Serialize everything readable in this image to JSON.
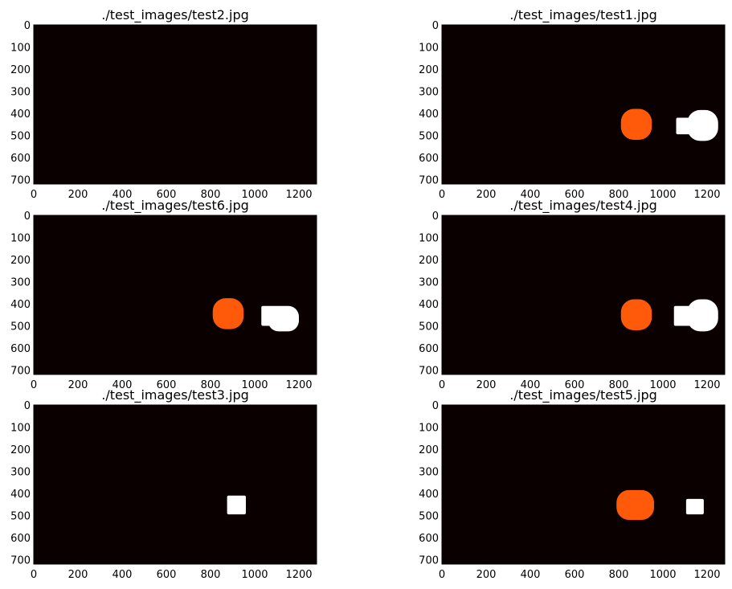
{
  "figure": {
    "background": "#ffffff"
  },
  "chart_data": [
    {
      "type": "heatmap",
      "title": "./test_images/test2.jpg",
      "xlim": [
        0,
        1280
      ],
      "ylim": [
        720,
        0
      ],
      "xticks": [
        "0",
        "200",
        "400",
        "600",
        "800",
        "1000",
        "1200"
      ],
      "yticks": [
        "0",
        "100",
        "200",
        "300",
        "400",
        "500",
        "600",
        "700"
      ],
      "background_color": "#0b0000",
      "blobs": []
    },
    {
      "type": "heatmap",
      "title": "./test_images/test1.jpg",
      "xlim": [
        0,
        1280
      ],
      "ylim": [
        720,
        0
      ],
      "xticks": [
        "0",
        "200",
        "400",
        "600",
        "800",
        "1000",
        "1200"
      ],
      "yticks": [
        "0",
        "100",
        "200",
        "300",
        "400",
        "500",
        "600",
        "700"
      ],
      "background_color": "#0b0000",
      "blobs": [
        {
          "shape": "round",
          "color": "#ff5a0a",
          "x": [
            810,
            950
          ],
          "y": [
            380,
            520
          ]
        },
        {
          "shape": "rect",
          "color": "#ffffff",
          "x": [
            1060,
            1130
          ],
          "y": [
            420,
            495
          ]
        },
        {
          "shape": "round",
          "color": "#ffffff",
          "x": [
            1110,
            1250
          ],
          "y": [
            385,
            525
          ]
        }
      ]
    },
    {
      "type": "heatmap",
      "title": "./test_images/test6.jpg",
      "xlim": [
        0,
        1280
      ],
      "ylim": [
        720,
        0
      ],
      "xticks": [
        "0",
        "200",
        "400",
        "600",
        "800",
        "1000",
        "1200"
      ],
      "yticks": [
        "0",
        "100",
        "200",
        "300",
        "400",
        "500",
        "600",
        "700"
      ],
      "background_color": "#0b0000",
      "blobs": [
        {
          "shape": "round",
          "color": "#ff5a0a",
          "x": [
            810,
            950
          ],
          "y": [
            375,
            515
          ]
        },
        {
          "shape": "rect",
          "color": "#ffffff",
          "x": [
            1030,
            1110
          ],
          "y": [
            410,
            500
          ]
        },
        {
          "shape": "round",
          "color": "#ffffff",
          "x": [
            1060,
            1200
          ],
          "y": [
            410,
            525
          ]
        }
      ]
    },
    {
      "type": "heatmap",
      "title": "./test_images/test4.jpg",
      "xlim": [
        0,
        1280
      ],
      "ylim": [
        720,
        0
      ],
      "xticks": [
        "0",
        "200",
        "400",
        "600",
        "800",
        "1000",
        "1200"
      ],
      "yticks": [
        "0",
        "100",
        "200",
        "300",
        "400",
        "500",
        "600",
        "700"
      ],
      "background_color": "#0b0000",
      "blobs": [
        {
          "shape": "round",
          "color": "#ff5a0a",
          "x": [
            810,
            950
          ],
          "y": [
            380,
            520
          ]
        },
        {
          "shape": "rect",
          "color": "#ffffff",
          "x": [
            1050,
            1130
          ],
          "y": [
            410,
            500
          ]
        },
        {
          "shape": "round",
          "color": "#ffffff",
          "x": [
            1110,
            1250
          ],
          "y": [
            380,
            525
          ]
        }
      ]
    },
    {
      "type": "heatmap",
      "title": "./test_images/test3.jpg",
      "xlim": [
        0,
        1280
      ],
      "ylim": [
        720,
        0
      ],
      "xticks": [
        "0",
        "200",
        "400",
        "600",
        "800",
        "1000",
        "1200"
      ],
      "yticks": [
        "0",
        "100",
        "200",
        "300",
        "400",
        "500",
        "600",
        "700"
      ],
      "background_color": "#0b0000",
      "blobs": [
        {
          "shape": "rect",
          "color": "#ffffff",
          "x": [
            875,
            960
          ],
          "y": [
            410,
            495
          ]
        }
      ]
    },
    {
      "type": "heatmap",
      "title": "./test_images/test5.jpg",
      "xlim": [
        0,
        1280
      ],
      "ylim": [
        720,
        0
      ],
      "xticks": [
        "0",
        "200",
        "400",
        "600",
        "800",
        "1000",
        "1200"
      ],
      "yticks": [
        "0",
        "100",
        "200",
        "300",
        "400",
        "500",
        "600",
        "700"
      ],
      "background_color": "#0b0000",
      "blobs": [
        {
          "shape": "round",
          "color": "#ff5a0a",
          "x": [
            790,
            960
          ],
          "y": [
            385,
            520
          ]
        },
        {
          "shape": "rect",
          "color": "#ffffff",
          "x": [
            1105,
            1185
          ],
          "y": [
            425,
            495
          ]
        }
      ]
    }
  ]
}
